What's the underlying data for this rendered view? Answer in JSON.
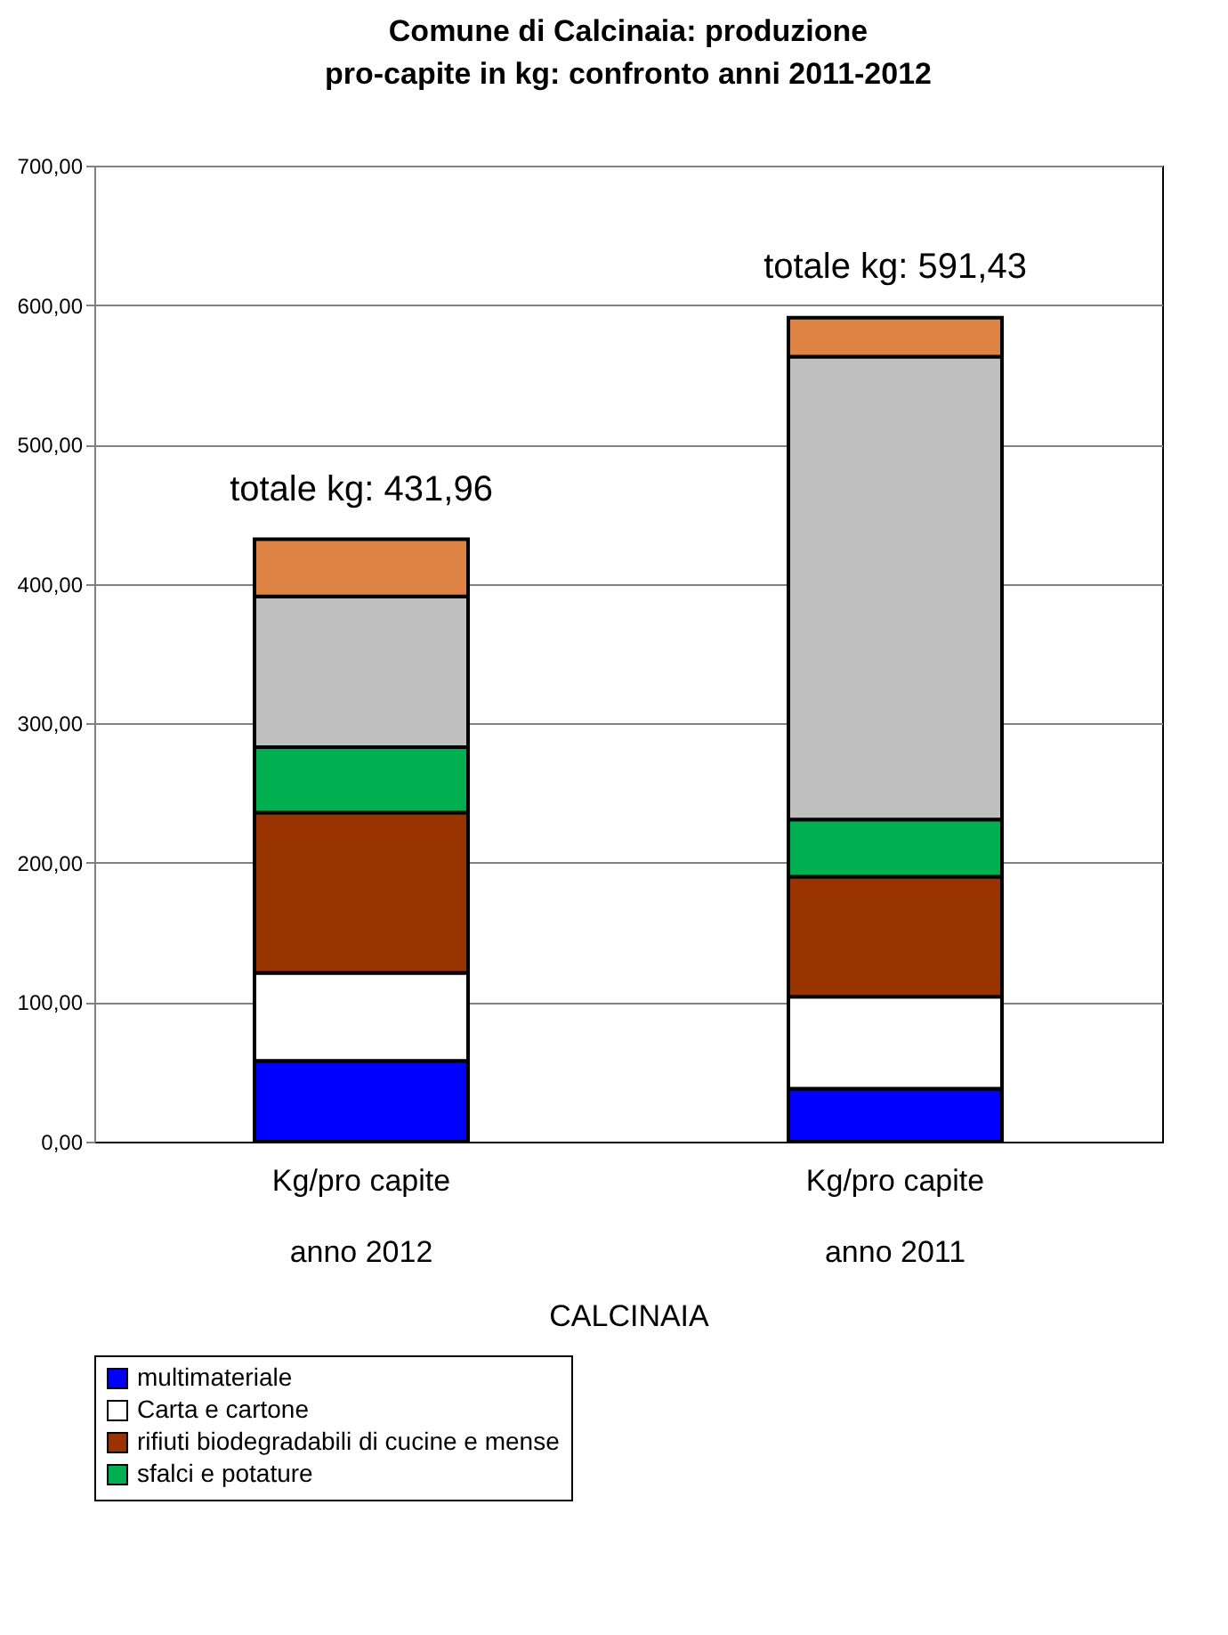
{
  "chart_data": {
    "type": "bar",
    "title": "Comune di Calcinaia: produzione pro-capite in kg: confronto anni 2011-2012",
    "categories": [
      "Kg/pro capite\nanno 2012",
      "Kg/pro capite\nanno 2011"
    ],
    "xlabel": "CALCINAIA",
    "stacked": true,
    "series": [
      {
        "name": "multimateriale",
        "color": "#0000ff",
        "values": [
          58,
          38
        ]
      },
      {
        "name": "Carta e cartone",
        "color": "#ffffff",
        "values": [
          63,
          66
        ]
      },
      {
        "name": "rifiuti biodegradabili di cucine e mense",
        "color": "#993300",
        "values": [
          115,
          86
        ]
      },
      {
        "name": "sfalci e potature",
        "color": "#00b050",
        "values": [
          47,
          41
        ]
      },
      {
        "color": "#c0c0c0",
        "values": [
          108,
          332
        ]
      },
      {
        "color": "#dd8444",
        "values": [
          41,
          28
        ]
      }
    ],
    "ylim": [
      0,
      700
    ],
    "yticks": [
      {
        "value": 0,
        "label": "0,00"
      },
      {
        "value": 100,
        "label": "100,00"
      },
      {
        "value": 200,
        "label": "200,00"
      },
      {
        "value": 300,
        "label": "300,00"
      },
      {
        "value": 400,
        "label": "400,00"
      },
      {
        "value": 500,
        "label": "500,00"
      },
      {
        "value": 600,
        "label": "600,00"
      },
      {
        "value": 700,
        "label": "700,00"
      }
    ],
    "annotations": [
      {
        "text": "totale kg: 431,96",
        "x": "Kg/pro capite\nanno 2012",
        "y": 431.96
      },
      {
        "text": "totale kg: 591,43",
        "x": "Kg/pro capite\nanno 2011",
        "y": 591.43
      }
    ],
    "grid": "y",
    "legend": "bottom"
  }
}
